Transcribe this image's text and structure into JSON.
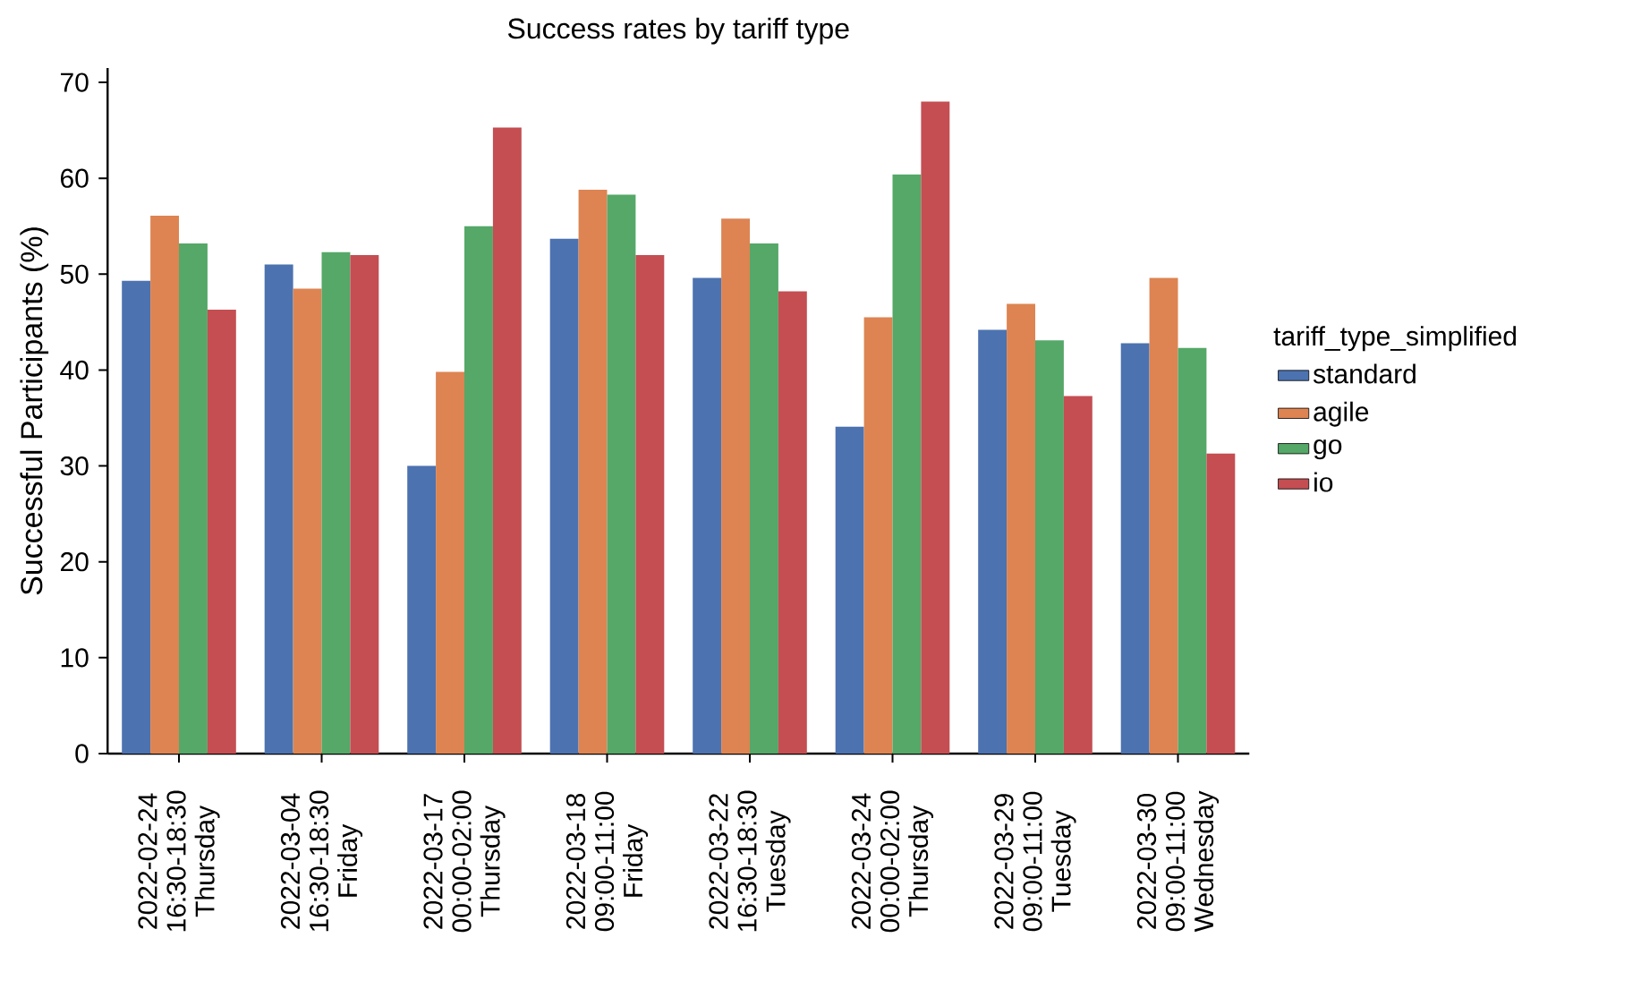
{
  "chart_data": {
    "type": "bar",
    "title": "Success rates by tariff type",
    "ylabel": "Successful Participants (%)",
    "categories": [
      "2022-02-24 16:30-18:30 Thursday",
      "2022-03-04 16:30-18:30 Friday",
      "2022-03-17 00:00-02:00 Thursday",
      "2022-03-18 09:00-11:00 Friday",
      "2022-03-22 16:30-18:30 Tuesday",
      "2022-03-24 00:00-02:00 Thursday",
      "2022-03-29 09:00-11:00 Tuesday",
      "2022-03-30 09:00-11:00 Wednesday"
    ],
    "series": [
      {
        "name": "standard",
        "color": "#4c72b0",
        "values": [
          49.3,
          51.0,
          30.0,
          53.7,
          49.6,
          34.1,
          44.2,
          42.8
        ]
      },
      {
        "name": "agile",
        "color": "#dd8452",
        "values": [
          56.1,
          48.5,
          39.8,
          58.8,
          55.8,
          45.5,
          46.9,
          49.6
        ]
      },
      {
        "name": "go",
        "color": "#55a868",
        "values": [
          53.2,
          52.3,
          55.0,
          58.3,
          53.2,
          60.4,
          43.1,
          42.3
        ]
      },
      {
        "name": "io",
        "color": "#c44e52",
        "values": [
          46.3,
          52.0,
          65.3,
          52.0,
          48.2,
          68.0,
          37.3,
          31.3
        ]
      }
    ],
    "legend_title": "tariff_type_simplified",
    "legend": "right",
    "ylim": [
      0,
      71.5
    ],
    "yticks": [
      0,
      10,
      20,
      30,
      40,
      50,
      60,
      70
    ],
    "grid": false
  }
}
